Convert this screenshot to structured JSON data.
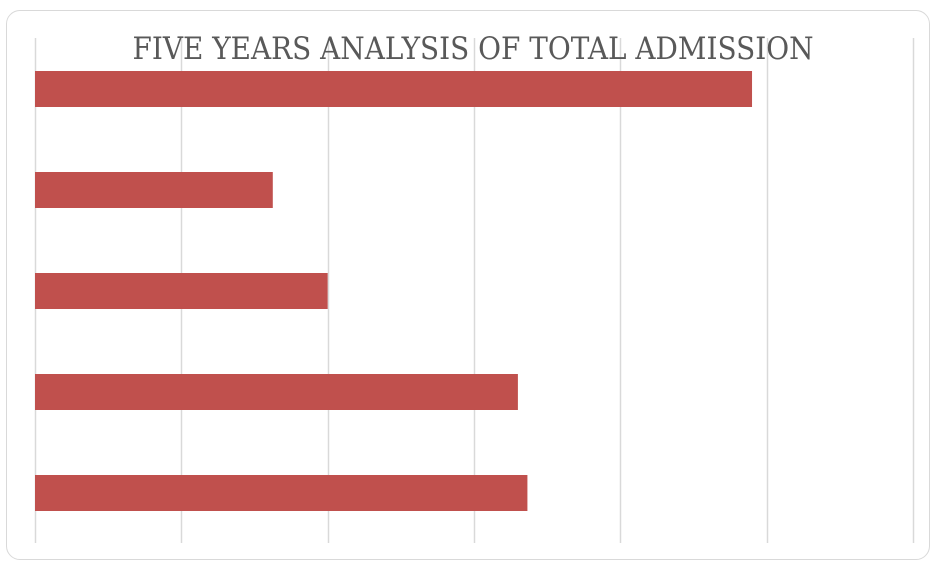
{
  "chart_data": {
    "type": "bar",
    "orientation": "horizontal",
    "title": "FIVE YEARS ANALYSIS OF TOTAL ADMISSION",
    "xlabel": "",
    "ylabel": "",
    "categories": [
      "",
      "",
      "",
      "",
      ""
    ],
    "values": [
      98,
      32.5,
      40,
      66,
      67.3
    ],
    "xlim": [
      0,
      120
    ],
    "x_gridline_step": 20,
    "grid": true,
    "legend": "none",
    "bar_color": "#c0504d",
    "grid_color": "#d9d9d9"
  }
}
